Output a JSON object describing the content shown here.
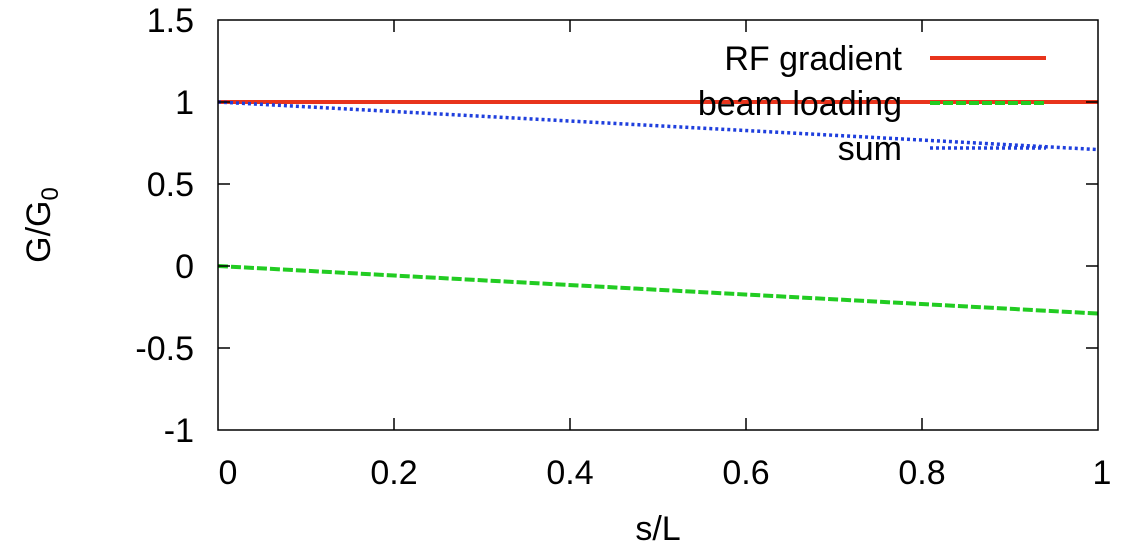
{
  "chart_data": {
    "type": "line",
    "title": "",
    "xlabel": "s/L",
    "ylabel": {
      "main": "G/G",
      "subscript": "0"
    },
    "xlim": [
      0,
      1
    ],
    "ylim": [
      -1,
      1.5
    ],
    "xticks": [
      {
        "value": 0,
        "label": "0"
      },
      {
        "value": 0.2,
        "label": "0.2"
      },
      {
        "value": 0.4,
        "label": "0.4"
      },
      {
        "value": 0.6,
        "label": "0.6"
      },
      {
        "value": 0.8,
        "label": "0.8"
      },
      {
        "value": 1,
        "label": "1"
      }
    ],
    "yticks": [
      {
        "value": -1,
        "label": "-1"
      },
      {
        "value": -0.5,
        "label": "-0.5"
      },
      {
        "value": 0,
        "label": "0"
      },
      {
        "value": 0.5,
        "label": "0.5"
      },
      {
        "value": 1,
        "label": "1"
      },
      {
        "value": 1.5,
        "label": "1.5"
      }
    ],
    "grid": false,
    "legend_position": "top-right",
    "series": [
      {
        "name": "RF gradient",
        "color": "#e8341c",
        "style": "solid",
        "x": [
          0,
          1
        ],
        "y": [
          1,
          1
        ]
      },
      {
        "name": "beam loading",
        "color": "#22cc22",
        "style": "dashed",
        "x": [
          0,
          1
        ],
        "y": [
          0,
          -0.29
        ]
      },
      {
        "name": "sum",
        "color": "#1f3fdd",
        "style": "dotted",
        "x": [
          0,
          1
        ],
        "y": [
          1,
          0.71
        ]
      }
    ]
  }
}
